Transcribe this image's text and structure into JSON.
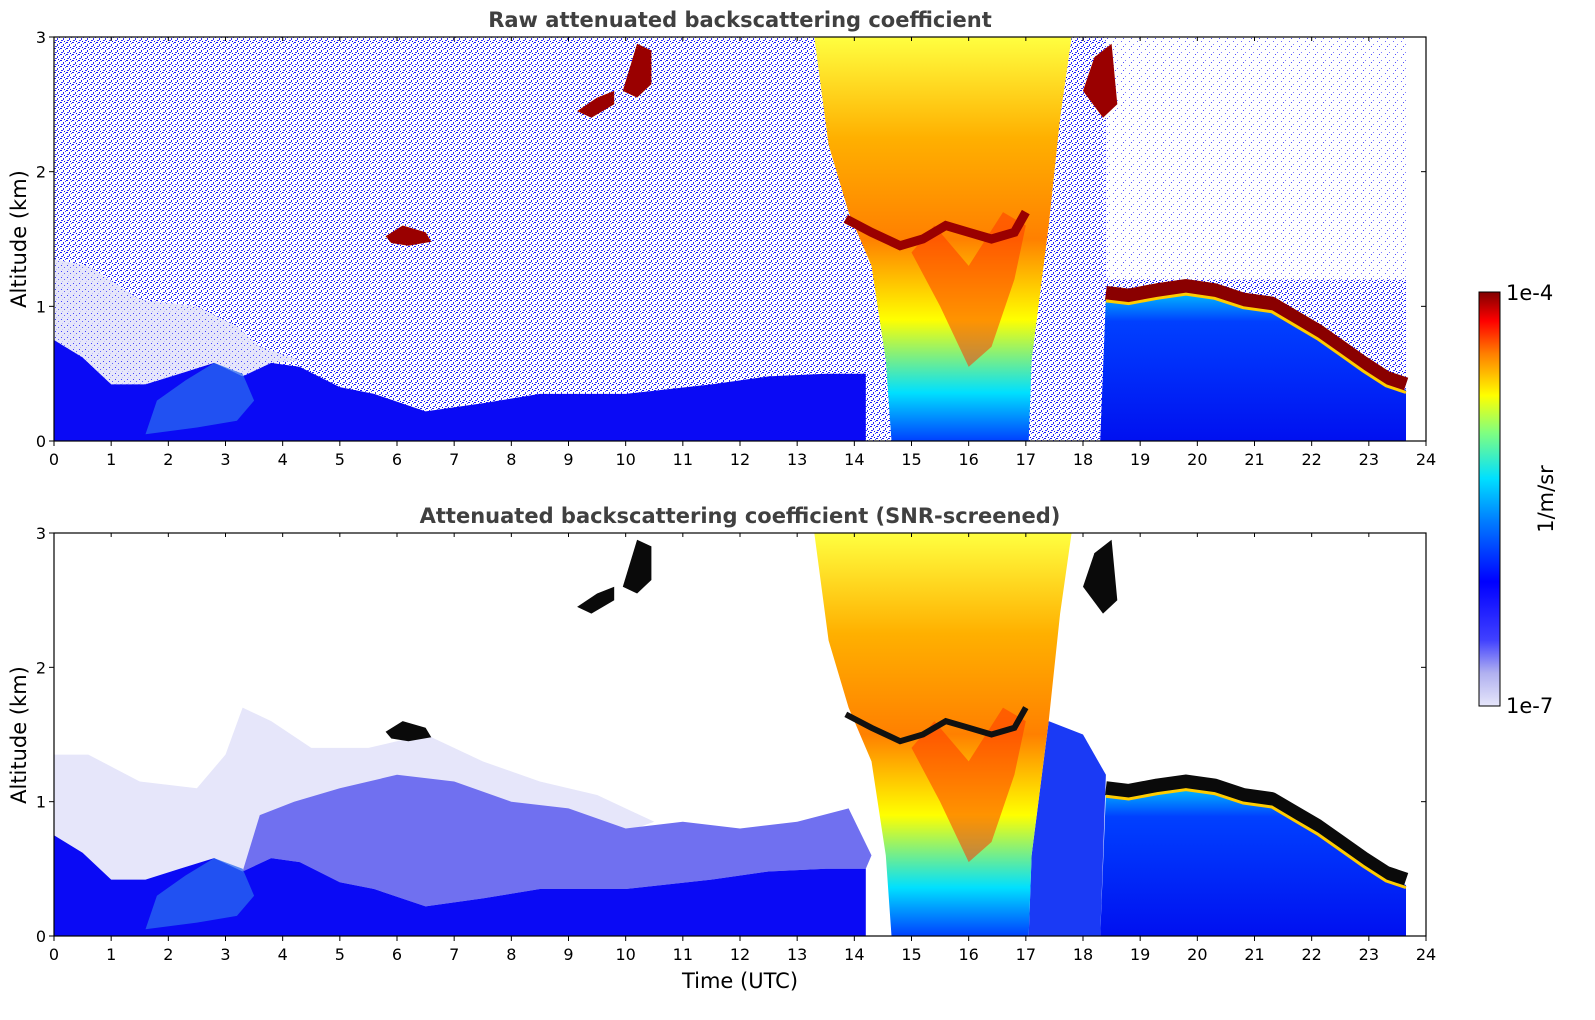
{
  "chart_data": [
    {
      "type": "heatmap",
      "title": "Raw attenuated backscattering coefficient",
      "xlabel": "",
      "ylabel": "Altitude (km)",
      "xlim": [
        0,
        24
      ],
      "ylim": [
        0,
        3
      ],
      "x_ticks": [
        "0",
        "1",
        "2",
        "3",
        "4",
        "5",
        "6",
        "7",
        "8",
        "9",
        "10",
        "11",
        "12",
        "13",
        "14",
        "15",
        "16",
        "17",
        "18",
        "19",
        "20",
        "21",
        "22",
        "23",
        "24"
      ],
      "y_ticks": [
        "0",
        "1",
        "2",
        "3"
      ],
      "data_end_time": 23.65,
      "features": [
        {
          "name": "boundary layer top",
          "time": [
            0,
            1,
            2,
            2.8,
            3.5,
            4.5,
            5.5,
            6.5,
            7.5,
            9,
            11,
            12.5,
            13.5
          ],
          "altitude": [
            0.35,
            0.25,
            0.3,
            0.55,
            0.45,
            0.35,
            0.3,
            0.25,
            0.3,
            0.35,
            0.4,
            0.45,
            0.5
          ]
        },
        {
          "name": "cloud patch",
          "time_range": [
            5.8,
            6.6
          ],
          "altitude_range": [
            1.45,
            1.6
          ]
        },
        {
          "name": "cloud patch",
          "time_range": [
            9.1,
            9.8
          ],
          "altitude_range": [
            2.4,
            2.6
          ]
        },
        {
          "name": "cloud patch",
          "time_range": [
            9.9,
            10.5
          ],
          "altitude_range": [
            2.55,
            2.95
          ]
        },
        {
          "name": "precipitation / thick cloud",
          "time_range": [
            13.9,
            17.1
          ],
          "altitude_range": [
            0,
            3
          ]
        },
        {
          "name": "stratocumulus cloud base",
          "time": [
            18.4,
            19.0,
            19.5,
            20.0,
            20.5,
            21.0,
            21.5,
            22.0,
            22.5,
            23.0,
            23.65
          ],
          "altitude": [
            1.1,
            1.1,
            1.13,
            1.15,
            1.1,
            1.05,
            1.0,
            0.85,
            0.7,
            0.55,
            0.4
          ]
        }
      ]
    },
    {
      "type": "heatmap",
      "title": "Attenuated backscattering coefficient (SNR-screened)",
      "xlabel": "Time (UTC)",
      "ylabel": "Altitude (km)",
      "xlim": [
        0,
        24
      ],
      "ylim": [
        0,
        3
      ],
      "x_ticks": [
        "0",
        "1",
        "2",
        "3",
        "4",
        "5",
        "6",
        "7",
        "8",
        "9",
        "10",
        "11",
        "12",
        "13",
        "14",
        "15",
        "16",
        "17",
        "18",
        "19",
        "20",
        "21",
        "22",
        "23",
        "24"
      ],
      "y_ticks": [
        "0",
        "1",
        "2",
        "3"
      ],
      "data_end_time": 23.65
    }
  ],
  "colorbar": {
    "label": "1/m/sr",
    "max_label": "1e-4",
    "min_label": "1e-7",
    "scale": "log",
    "colormap": "jet"
  },
  "colors": {
    "low": "#e6e6fa",
    "blue": "#0000ff",
    "cyan": "#00e5ff",
    "yellow": "#ffff00",
    "orange": "#ff8000",
    "dark_red": "#800000",
    "title_gray": "#404040"
  }
}
